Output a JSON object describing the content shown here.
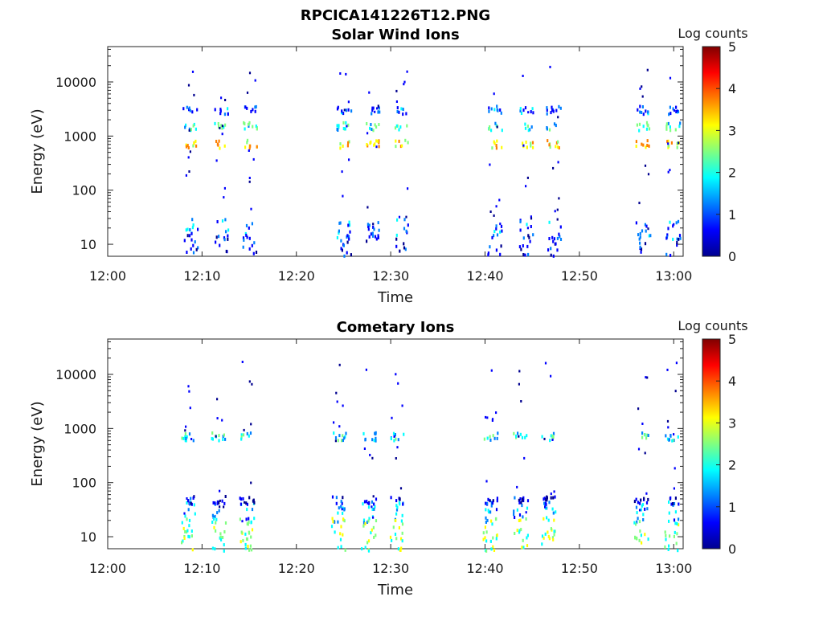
{
  "figure_title": "RPCICA141226T12.PNG",
  "colors": {
    "colormap": [
      "#00008f",
      "#0000ff",
      "#0080ff",
      "#00ffff",
      "#80ff80",
      "#ffff00",
      "#ff8000",
      "#ff0000",
      "#800000"
    ]
  },
  "chart_data": [
    {
      "type": "heatmap",
      "title": "Solar Wind Ions",
      "xlabel": "Time",
      "ylabel": "Energy (eV)",
      "x_ticks": [
        "12:00",
        "12:10",
        "12:20",
        "12:30",
        "12:40",
        "12:50",
        "13:00"
      ],
      "xlim_minutes": [
        0,
        61
      ],
      "ylim": [
        6,
        45000
      ],
      "yscale": "log",
      "y_ticks": [
        "10",
        "100",
        "1000",
        "10000"
      ],
      "y_tick_values": [
        10,
        100,
        1000,
        10000
      ],
      "colorbar": {
        "label": "Log counts",
        "min": 0,
        "max": 5,
        "ticks": [
          "0",
          "1",
          "2",
          "3",
          "4",
          "5"
        ]
      },
      "bursts_minutes": [
        8.7,
        12.0,
        15.0,
        25.0,
        28.0,
        31.1,
        41.0,
        44.3,
        47.2,
        56.7,
        59.9
      ],
      "hotspots": [
        {
          "energy_eV": 750,
          "log_counts": 3.2
        },
        {
          "energy_eV": 1600,
          "log_counts": 2.0
        },
        {
          "energy_eV": 3200,
          "log_counts": 1.0
        },
        {
          "energy_eV": 20,
          "log_counts": 1.2
        },
        {
          "energy_eV": 10,
          "log_counts": 0.6
        }
      ]
    },
    {
      "type": "heatmap",
      "title": "Cometary Ions",
      "xlabel": "Time",
      "ylabel": "Energy (eV)",
      "x_ticks": [
        "12:00",
        "12:10",
        "12:20",
        "12:30",
        "12:40",
        "12:50",
        "13:00"
      ],
      "xlim_minutes": [
        0,
        61
      ],
      "ylim": [
        6,
        45000
      ],
      "yscale": "log",
      "y_ticks": [
        "10",
        "100",
        "1000",
        "10000"
      ],
      "y_tick_values": [
        10,
        100,
        1000,
        10000
      ],
      "colorbar": {
        "label": "Log counts",
        "min": 0,
        "max": 5,
        "ticks": [
          "0",
          "1",
          "2",
          "3",
          "4",
          "5"
        ]
      },
      "bursts_minutes": [
        8.5,
        11.7,
        14.7,
        24.4,
        27.6,
        30.6,
        40.5,
        43.7,
        46.7,
        56.5,
        59.7
      ],
      "hotspots": [
        {
          "energy_eV": 750,
          "log_counts": 1.8
        },
        {
          "energy_eV": 30,
          "log_counts": 1.5
        },
        {
          "energy_eV": 15,
          "log_counts": 2.6
        },
        {
          "energy_eV": 9,
          "log_counts": 2.3
        },
        {
          "energy_eV": 50,
          "log_counts": 0.4
        }
      ]
    }
  ]
}
